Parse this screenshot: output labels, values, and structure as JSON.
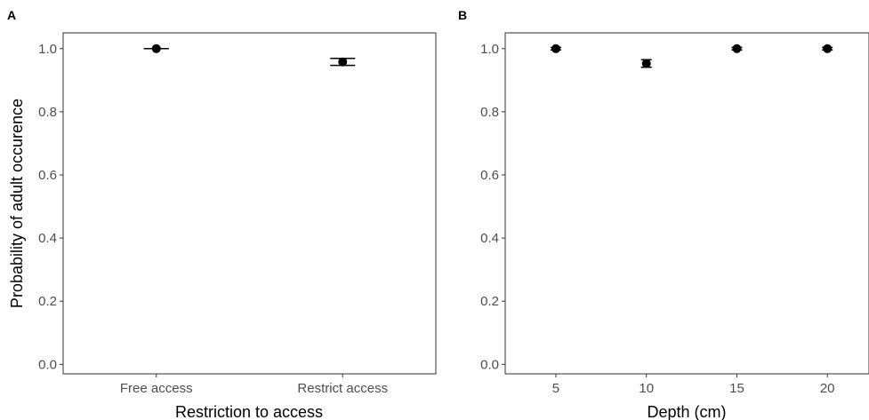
{
  "chart_data": [
    {
      "type": "scatter",
      "panel_label": "A",
      "xlabel": "Restriction to access",
      "ylabel": "Probability of adult occurence",
      "categories": [
        "Free access",
        "Restrict access"
      ],
      "values": [
        1.0,
        0.958
      ],
      "error_low": [
        1.0,
        0.947
      ],
      "error_high": [
        1.0,
        0.969
      ],
      "ylim": [
        -0.03,
        1.05
      ],
      "yticks": [
        "0.0",
        "0.2",
        "0.4",
        "0.6",
        "0.8",
        "1.0"
      ],
      "grid": false,
      "legend": "none"
    },
    {
      "type": "scatter",
      "panel_label": "B",
      "xlabel": "Depth (cm)",
      "ylabel": "",
      "x": [
        5,
        10,
        15,
        20
      ],
      "values": [
        1.0,
        0.953,
        1.0,
        1.0
      ],
      "error_low": [
        0.996,
        0.941,
        0.996,
        0.996
      ],
      "error_high": [
        1.004,
        0.965,
        1.004,
        1.004
      ],
      "xticks": [
        "5",
        "10",
        "15",
        "20"
      ],
      "xlim": [
        2.2,
        22.3
      ],
      "ylim": [
        -0.03,
        1.05
      ],
      "yticks": [
        "0.0",
        "0.2",
        "0.4",
        "0.6",
        "0.8",
        "1.0"
      ],
      "grid": false,
      "legend": "none"
    }
  ]
}
